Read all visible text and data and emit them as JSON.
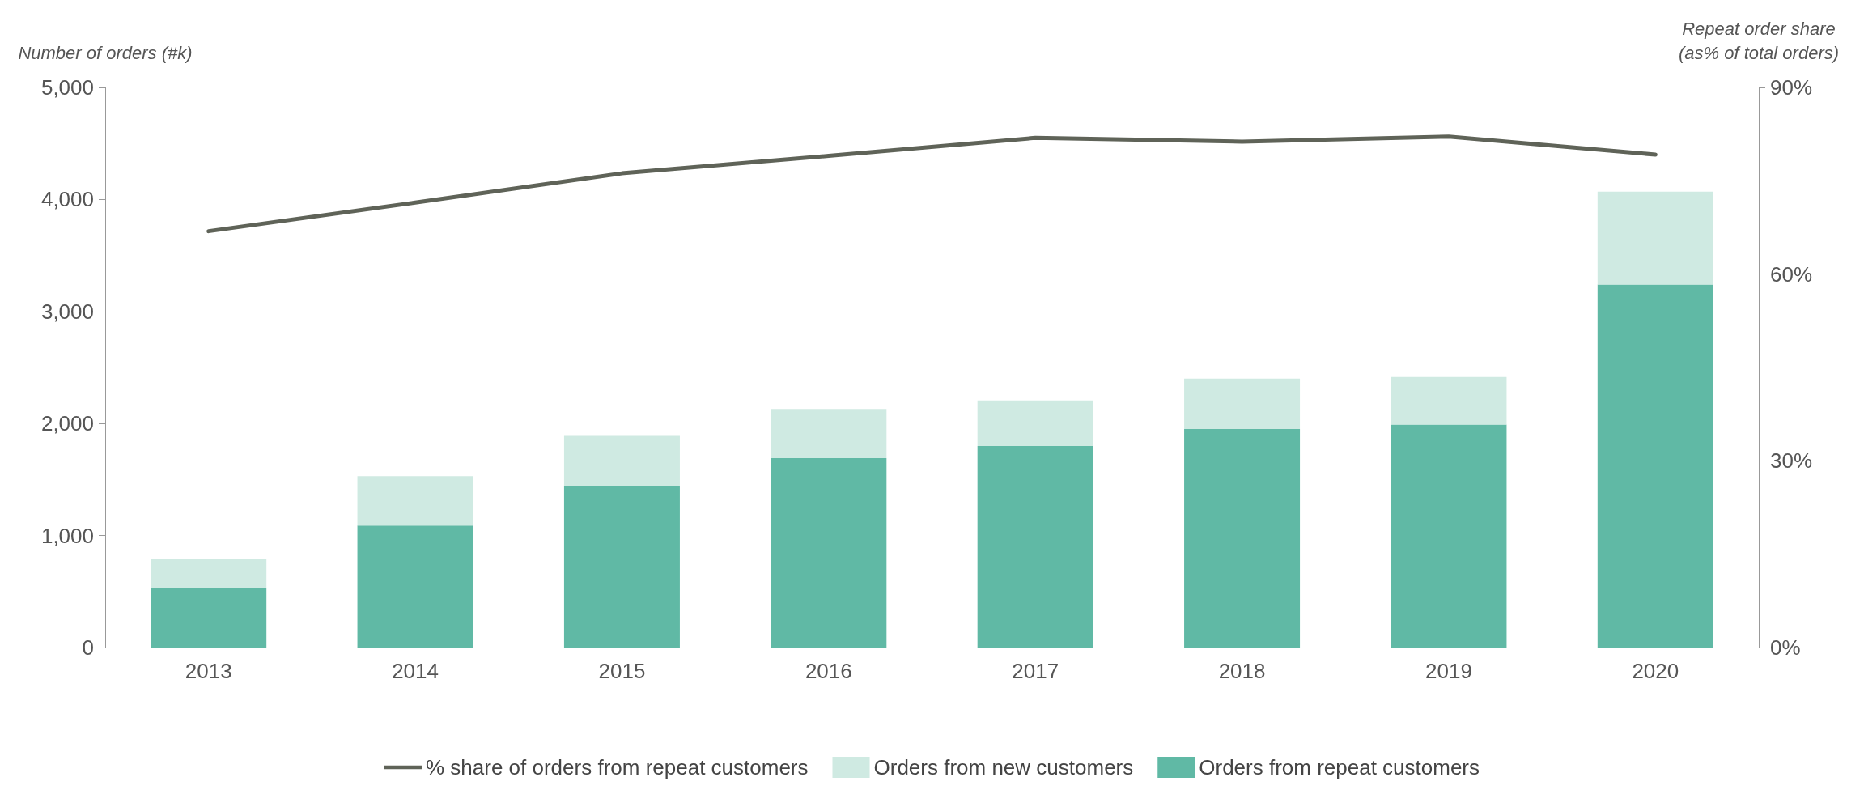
{
  "chart_data": {
    "type": "bar",
    "stacked": true,
    "ylabel": "Number of orders (#k)",
    "y2label": "Repeat order share\n(as% of total orders)",
    "categories": [
      "2013",
      "2014",
      "2015",
      "2016",
      "2017",
      "2018",
      "2019",
      "2020"
    ],
    "series": [
      {
        "name": "% share of orders from repeat customers",
        "type": "line",
        "axis": "y2",
        "color": "#5f6358",
        "values": [
          66.9,
          71.5,
          76.2,
          79.0,
          81.9,
          81.3,
          82.1,
          79.2
        ]
      },
      {
        "name": "Orders from repeat customers",
        "color": "#60b9a5",
        "values": [
          530,
          1090,
          1440,
          1690,
          1800,
          1950,
          1990,
          3240
        ]
      },
      {
        "name": "Orders from new customers",
        "color": "#cfeae2",
        "values": [
          260,
          440,
          450,
          440,
          405,
          450,
          425,
          830
        ]
      }
    ],
    "ylim": [
      0,
      5000
    ],
    "yticks": [
      0,
      {
        "value": 1000,
        "label": "1,000"
      },
      {
        "value": 2000,
        "label": "2,000"
      },
      {
        "value": 3000,
        "label": "3,000"
      },
      {
        "value": 4000,
        "label": "4,000"
      },
      {
        "value": 5000,
        "label": "5,000"
      }
    ],
    "y2lim": [
      0,
      90
    ],
    "y2ticks": [
      {
        "value": 0,
        "label": "0%"
      },
      {
        "value": 30,
        "label": "30%"
      },
      {
        "value": 60,
        "label": "60%"
      },
      {
        "value": 90,
        "label": "90%"
      }
    ],
    "grid": false,
    "legend": "bottom",
    "marker": "none",
    "line_style": "solid"
  }
}
